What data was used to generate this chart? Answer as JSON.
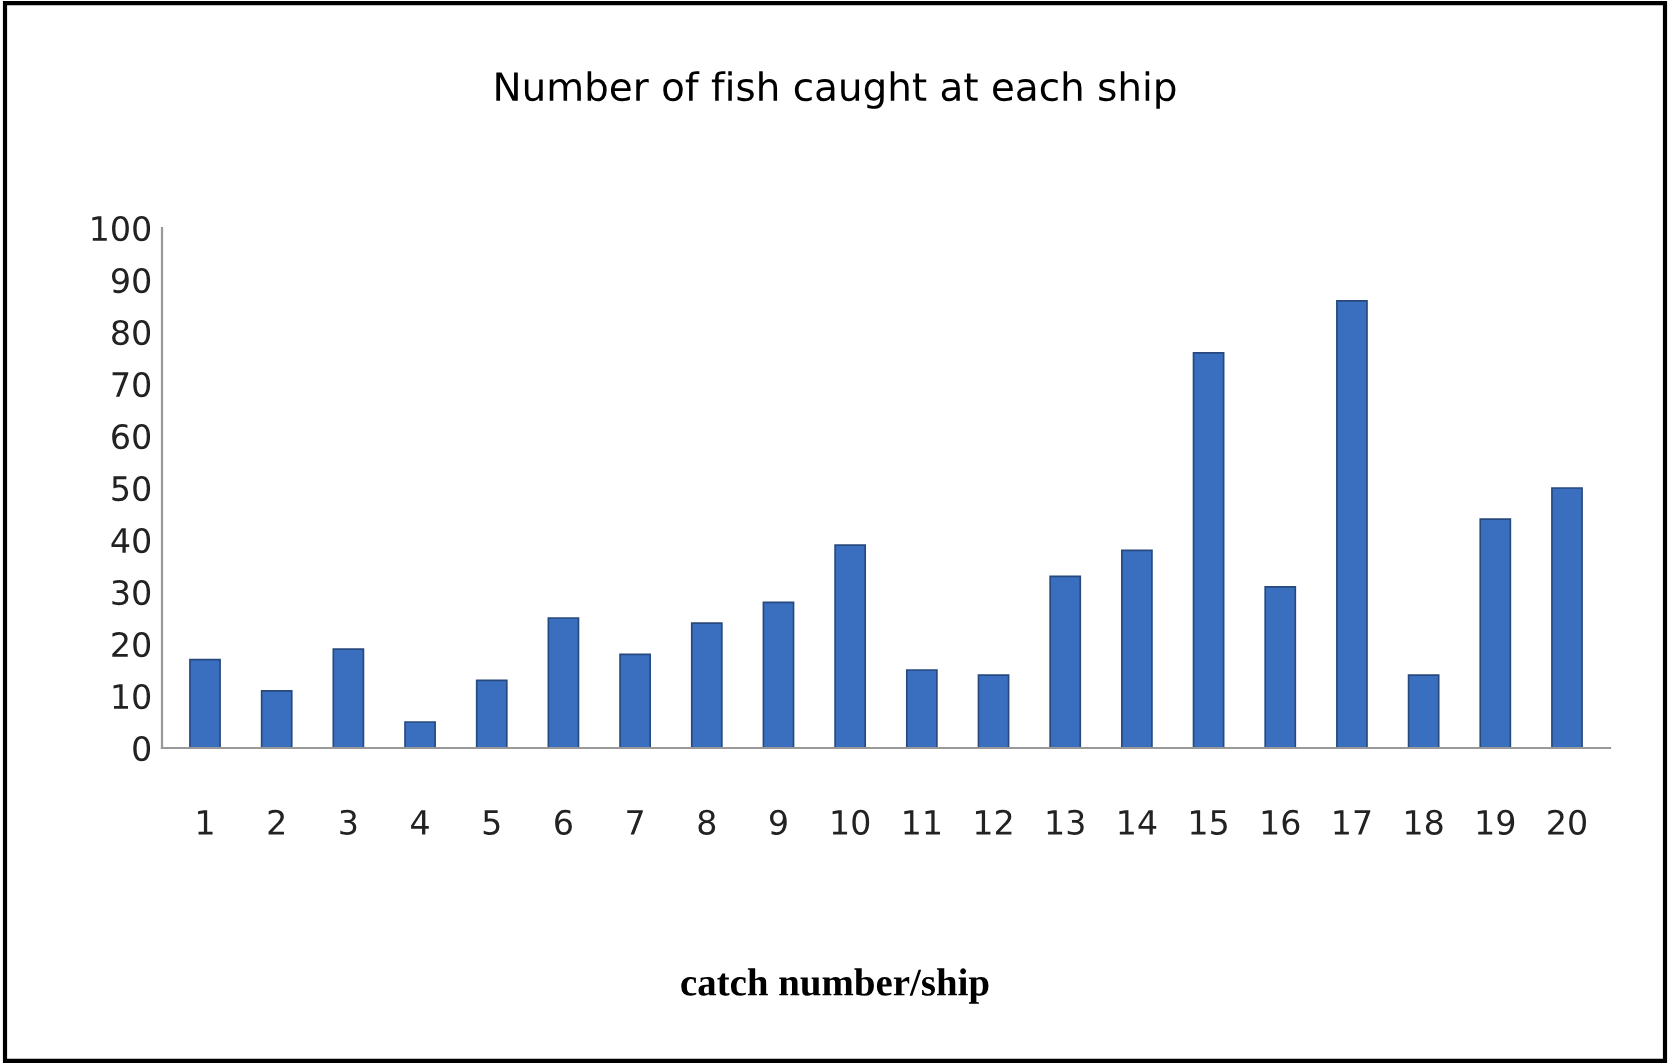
{
  "chart_data": {
    "type": "bar",
    "title": "Number of fish caught at each ship",
    "xlabel": "catch number/ship",
    "categories": [
      "1",
      "2",
      "3",
      "4",
      "5",
      "6",
      "7",
      "8",
      "9",
      "10",
      "11",
      "12",
      "13",
      "14",
      "15",
      "16",
      "17",
      "18",
      "19",
      "20"
    ],
    "values": [
      17,
      11,
      19,
      5,
      13,
      25,
      18,
      24,
      28,
      39,
      15,
      14,
      33,
      38,
      76,
      31,
      86,
      14,
      44,
      50
    ],
    "color": "#3a6fbf",
    "ylim": [
      0,
      100
    ],
    "yticks": [
      0,
      10,
      20,
      30,
      40,
      50,
      60,
      70,
      80,
      90,
      100
    ],
    "grid": false,
    "legend": false
  }
}
